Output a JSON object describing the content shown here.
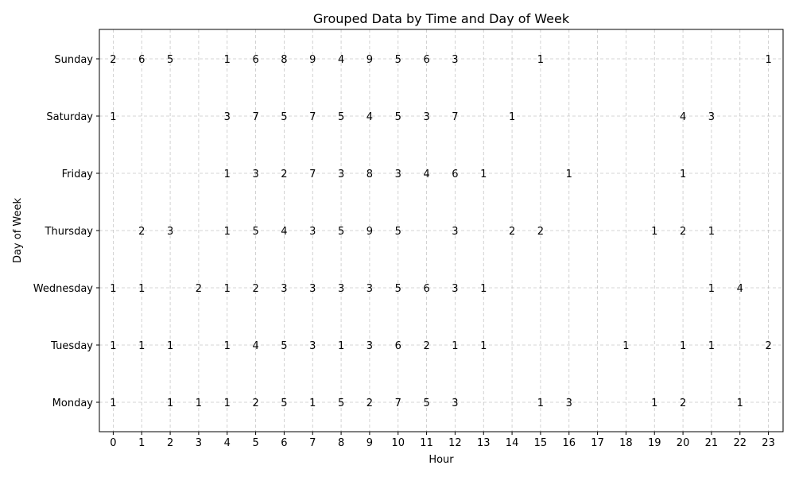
{
  "chart_data": {
    "type": "table",
    "title": "Grouped Data by Time and Day of Week",
    "xlabel": "Hour",
    "ylabel": "Day of Week",
    "x": [
      0,
      1,
      2,
      3,
      4,
      5,
      6,
      7,
      8,
      9,
      10,
      11,
      12,
      13,
      14,
      15,
      16,
      17,
      18,
      19,
      20,
      21,
      22,
      23
    ],
    "categories": [
      "Monday",
      "Tuesday",
      "Wednesday",
      "Thursday",
      "Friday",
      "Saturday",
      "Sunday"
    ],
    "grid": true,
    "points": [
      {
        "day": "Sunday",
        "hour": 0,
        "count": 2
      },
      {
        "day": "Sunday",
        "hour": 1,
        "count": 6
      },
      {
        "day": "Sunday",
        "hour": 2,
        "count": 5
      },
      {
        "day": "Sunday",
        "hour": 4,
        "count": 1
      },
      {
        "day": "Sunday",
        "hour": 5,
        "count": 6
      },
      {
        "day": "Sunday",
        "hour": 6,
        "count": 8
      },
      {
        "day": "Sunday",
        "hour": 7,
        "count": 9
      },
      {
        "day": "Sunday",
        "hour": 8,
        "count": 4
      },
      {
        "day": "Sunday",
        "hour": 9,
        "count": 9
      },
      {
        "day": "Sunday",
        "hour": 10,
        "count": 5
      },
      {
        "day": "Sunday",
        "hour": 11,
        "count": 6
      },
      {
        "day": "Sunday",
        "hour": 12,
        "count": 3
      },
      {
        "day": "Sunday",
        "hour": 15,
        "count": 1
      },
      {
        "day": "Sunday",
        "hour": 23,
        "count": 1
      },
      {
        "day": "Saturday",
        "hour": 0,
        "count": 1
      },
      {
        "day": "Saturday",
        "hour": 4,
        "count": 3
      },
      {
        "day": "Saturday",
        "hour": 5,
        "count": 7
      },
      {
        "day": "Saturday",
        "hour": 6,
        "count": 5
      },
      {
        "day": "Saturday",
        "hour": 7,
        "count": 7
      },
      {
        "day": "Saturday",
        "hour": 8,
        "count": 5
      },
      {
        "day": "Saturday",
        "hour": 9,
        "count": 4
      },
      {
        "day": "Saturday",
        "hour": 10,
        "count": 5
      },
      {
        "day": "Saturday",
        "hour": 11,
        "count": 3
      },
      {
        "day": "Saturday",
        "hour": 12,
        "count": 7
      },
      {
        "day": "Saturday",
        "hour": 14,
        "count": 1
      },
      {
        "day": "Saturday",
        "hour": 20,
        "count": 4
      },
      {
        "day": "Saturday",
        "hour": 21,
        "count": 3
      },
      {
        "day": "Friday",
        "hour": 4,
        "count": 1
      },
      {
        "day": "Friday",
        "hour": 5,
        "count": 3
      },
      {
        "day": "Friday",
        "hour": 6,
        "count": 2
      },
      {
        "day": "Friday",
        "hour": 7,
        "count": 7
      },
      {
        "day": "Friday",
        "hour": 8,
        "count": 3
      },
      {
        "day": "Friday",
        "hour": 9,
        "count": 8
      },
      {
        "day": "Friday",
        "hour": 10,
        "count": 3
      },
      {
        "day": "Friday",
        "hour": 11,
        "count": 4
      },
      {
        "day": "Friday",
        "hour": 12,
        "count": 6
      },
      {
        "day": "Friday",
        "hour": 13,
        "count": 1
      },
      {
        "day": "Friday",
        "hour": 16,
        "count": 1
      },
      {
        "day": "Friday",
        "hour": 20,
        "count": 1
      },
      {
        "day": "Thursday",
        "hour": 1,
        "count": 2
      },
      {
        "day": "Thursday",
        "hour": 2,
        "count": 3
      },
      {
        "day": "Thursday",
        "hour": 4,
        "count": 1
      },
      {
        "day": "Thursday",
        "hour": 5,
        "count": 5
      },
      {
        "day": "Thursday",
        "hour": 6,
        "count": 4
      },
      {
        "day": "Thursday",
        "hour": 7,
        "count": 3
      },
      {
        "day": "Thursday",
        "hour": 8,
        "count": 5
      },
      {
        "day": "Thursday",
        "hour": 9,
        "count": 9
      },
      {
        "day": "Thursday",
        "hour": 10,
        "count": 5
      },
      {
        "day": "Thursday",
        "hour": 12,
        "count": 3
      },
      {
        "day": "Thursday",
        "hour": 14,
        "count": 2
      },
      {
        "day": "Thursday",
        "hour": 15,
        "count": 2
      },
      {
        "day": "Thursday",
        "hour": 19,
        "count": 1
      },
      {
        "day": "Thursday",
        "hour": 20,
        "count": 2
      },
      {
        "day": "Thursday",
        "hour": 21,
        "count": 1
      },
      {
        "day": "Wednesday",
        "hour": 0,
        "count": 1
      },
      {
        "day": "Wednesday",
        "hour": 1,
        "count": 1
      },
      {
        "day": "Wednesday",
        "hour": 3,
        "count": 2
      },
      {
        "day": "Wednesday",
        "hour": 4,
        "count": 1
      },
      {
        "day": "Wednesday",
        "hour": 5,
        "count": 2
      },
      {
        "day": "Wednesday",
        "hour": 6,
        "count": 3
      },
      {
        "day": "Wednesday",
        "hour": 7,
        "count": 3
      },
      {
        "day": "Wednesday",
        "hour": 8,
        "count": 3
      },
      {
        "day": "Wednesday",
        "hour": 9,
        "count": 3
      },
      {
        "day": "Wednesday",
        "hour": 10,
        "count": 5
      },
      {
        "day": "Wednesday",
        "hour": 11,
        "count": 6
      },
      {
        "day": "Wednesday",
        "hour": 12,
        "count": 3
      },
      {
        "day": "Wednesday",
        "hour": 13,
        "count": 1
      },
      {
        "day": "Wednesday",
        "hour": 21,
        "count": 1
      },
      {
        "day": "Wednesday",
        "hour": 22,
        "count": 4
      },
      {
        "day": "Tuesday",
        "hour": 0,
        "count": 1
      },
      {
        "day": "Tuesday",
        "hour": 1,
        "count": 1
      },
      {
        "day": "Tuesday",
        "hour": 2,
        "count": 1
      },
      {
        "day": "Tuesday",
        "hour": 4,
        "count": 1
      },
      {
        "day": "Tuesday",
        "hour": 5,
        "count": 4
      },
      {
        "day": "Tuesday",
        "hour": 6,
        "count": 5
      },
      {
        "day": "Tuesday",
        "hour": 7,
        "count": 3
      },
      {
        "day": "Tuesday",
        "hour": 8,
        "count": 1
      },
      {
        "day": "Tuesday",
        "hour": 9,
        "count": 3
      },
      {
        "day": "Tuesday",
        "hour": 10,
        "count": 6
      },
      {
        "day": "Tuesday",
        "hour": 11,
        "count": 2
      },
      {
        "day": "Tuesday",
        "hour": 12,
        "count": 1
      },
      {
        "day": "Tuesday",
        "hour": 13,
        "count": 1
      },
      {
        "day": "Tuesday",
        "hour": 18,
        "count": 1
      },
      {
        "day": "Tuesday",
        "hour": 20,
        "count": 1
      },
      {
        "day": "Tuesday",
        "hour": 21,
        "count": 1
      },
      {
        "day": "Tuesday",
        "hour": 23,
        "count": 2
      },
      {
        "day": "Monday",
        "hour": 0,
        "count": 1
      },
      {
        "day": "Monday",
        "hour": 2,
        "count": 1
      },
      {
        "day": "Monday",
        "hour": 3,
        "count": 1
      },
      {
        "day": "Monday",
        "hour": 4,
        "count": 1
      },
      {
        "day": "Monday",
        "hour": 5,
        "count": 2
      },
      {
        "day": "Monday",
        "hour": 6,
        "count": 5
      },
      {
        "day": "Monday",
        "hour": 7,
        "count": 1
      },
      {
        "day": "Monday",
        "hour": 8,
        "count": 5
      },
      {
        "day": "Monday",
        "hour": 9,
        "count": 2
      },
      {
        "day": "Monday",
        "hour": 10,
        "count": 7
      },
      {
        "day": "Monday",
        "hour": 11,
        "count": 5
      },
      {
        "day": "Monday",
        "hour": 12,
        "count": 3
      },
      {
        "day": "Monday",
        "hour": 15,
        "count": 1
      },
      {
        "day": "Monday",
        "hour": 16,
        "count": 3
      },
      {
        "day": "Monday",
        "hour": 19,
        "count": 1
      },
      {
        "day": "Monday",
        "hour": 20,
        "count": 2
      },
      {
        "day": "Monday",
        "hour": 22,
        "count": 1
      }
    ]
  }
}
